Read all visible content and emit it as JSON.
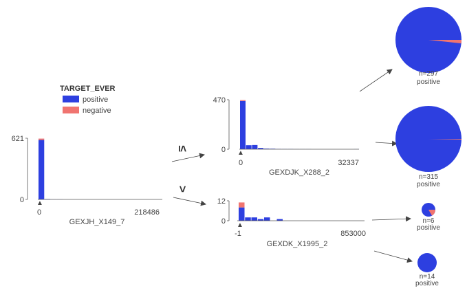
{
  "colors": {
    "positive": "#2d3fe0",
    "negative": "#f07470",
    "axis": "#555555",
    "arrow": "#444444"
  },
  "legend": {
    "title": "TARGET_EVER",
    "items": [
      {
        "label": "positive",
        "color": "#2d3fe0"
      },
      {
        "label": "negative",
        "color": "#f07470"
      }
    ]
  },
  "operators": {
    "le": "≤",
    "gt": ">"
  },
  "root": {
    "feature": "GEXJH_X149_7",
    "y_max_label": "621",
    "y_min_label": "0",
    "x_min_label": "0",
    "x_max_label": "218486",
    "threshold_marker": "▲",
    "chart_data": {
      "type": "bar",
      "ylim": [
        0,
        621
      ],
      "series": [
        {
          "name": "positive",
          "values": [
            603,
            4,
            1,
            1,
            0,
            0,
            0,
            0,
            0,
            0,
            0,
            0,
            0,
            0,
            0,
            0,
            0,
            0,
            0,
            0
          ]
        },
        {
          "name": "negative",
          "values": [
            14,
            0,
            0,
            0,
            0,
            0,
            0,
            0,
            0,
            0,
            0,
            0,
            0,
            0,
            0,
            0,
            0,
            0,
            0,
            0
          ]
        }
      ]
    }
  },
  "left": {
    "feature": "GEXDJK_X288_2",
    "y_max_label": "470",
    "y_min_label": "0",
    "x_min_label": "0",
    "x_max_label": "32337",
    "threshold_marker": "▲",
    "chart_data": {
      "type": "bar",
      "ylim": [
        0,
        470
      ],
      "series": [
        {
          "name": "positive",
          "values": [
            458,
            38,
            40,
            12,
            6,
            5,
            3,
            2,
            2,
            1,
            1,
            1,
            0,
            0,
            0,
            0,
            0,
            0,
            0,
            1
          ]
        },
        {
          "name": "negative",
          "values": [
            8,
            0,
            0,
            0,
            0,
            0,
            0,
            0,
            0,
            0,
            0,
            0,
            0,
            0,
            0,
            0,
            0,
            0,
            0,
            0
          ]
        }
      ]
    }
  },
  "right": {
    "feature": "GEXDK_X1995_2",
    "y_max_label": "12",
    "y_min_label": "0",
    "x_min_label": "-1",
    "x_max_label": "853000",
    "threshold_marker": "▲",
    "chart_data": {
      "type": "bar",
      "ylim": [
        0,
        12
      ],
      "series": [
        {
          "name": "positive",
          "values": [
            8,
            2,
            2,
            1,
            2,
            0,
            1,
            0,
            0,
            0,
            0,
            0,
            0,
            0,
            0,
            0,
            0,
            0,
            0,
            0
          ]
        },
        {
          "name": "negative",
          "values": [
            3,
            0,
            0,
            0,
            0,
            0,
            0,
            0,
            0,
            0,
            0,
            0,
            0,
            0,
            0,
            0,
            0,
            0,
            0,
            0
          ]
        }
      ]
    }
  },
  "leaves": [
    {
      "n_label": "n=297",
      "class_label": "positive",
      "positive": 292,
      "negative": 5
    },
    {
      "n_label": "n=315",
      "class_label": "positive",
      "positive": 314,
      "negative": 1
    },
    {
      "n_label": "n=6",
      "class_label": "positive",
      "positive": 5,
      "negative": 1
    },
    {
      "n_label": "n=14",
      "class_label": "positive",
      "positive": 14,
      "negative": 0
    }
  ]
}
